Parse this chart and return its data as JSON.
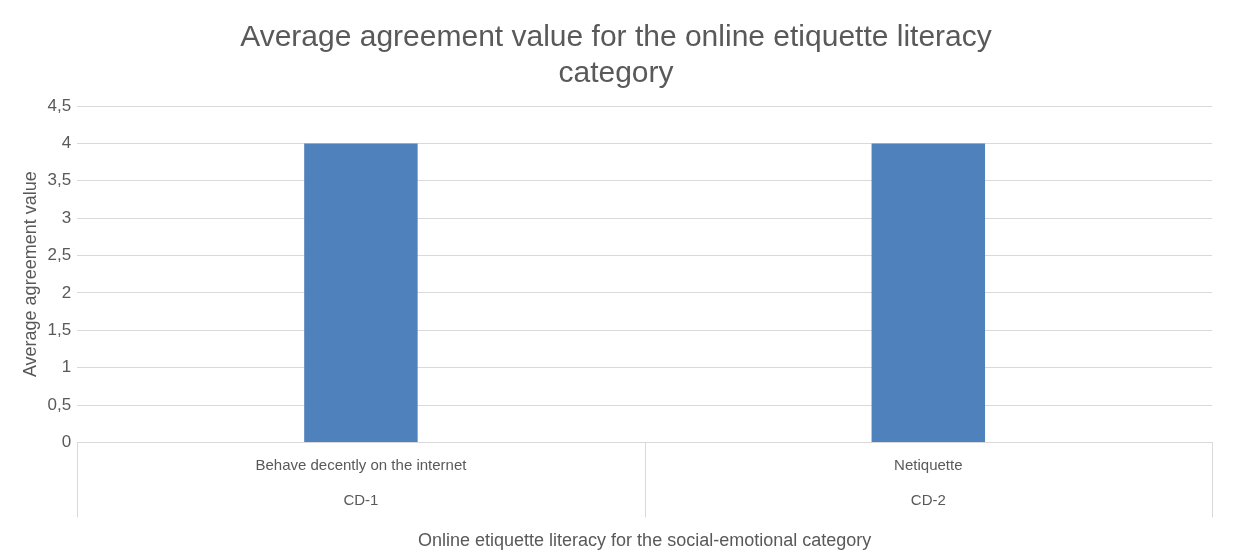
{
  "chart_data": {
    "type": "bar",
    "title": "Average agreement value for the online etiquette literacy category",
    "xlabel": "Online etiquette literacy for the social-emotional category",
    "ylabel": "Average agreement value",
    "categories": [
      "Behave decently on the internet",
      "Netiquette"
    ],
    "values": [
      4,
      4
    ],
    "color": "#4f81bd",
    "ylim": [
      0,
      4.5
    ],
    "yticks": [
      0,
      {
        "value": 0.5,
        "label": "0,5"
      },
      1,
      {
        "value": 1.5,
        "label": "1,5"
      },
      2,
      {
        "value": 2.5,
        "label": "2,5"
      },
      3,
      {
        "value": 3.5,
        "label": "3,5"
      },
      4,
      {
        "value": 4.5,
        "label": "4,5"
      }
    ],
    "annotations": [
      "CD-1",
      "CD-2"
    ],
    "grid": "y",
    "legend": false
  }
}
